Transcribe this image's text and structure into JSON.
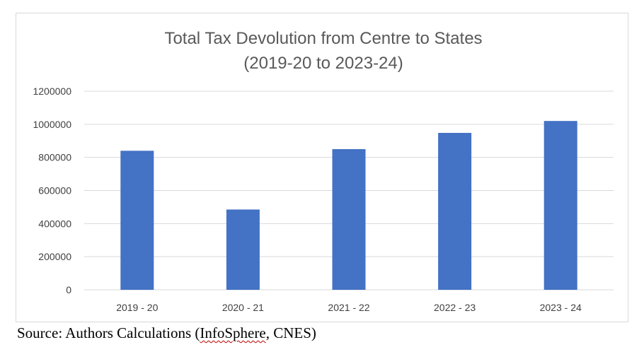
{
  "chart_data": {
    "type": "bar",
    "title": "Total Tax Devolution from Centre to States",
    "subtitle": "(2019-20 to 2023-24)",
    "categories": [
      "2019 - 20",
      "2020 - 21",
      "2021 - 22",
      "2022 - 23",
      "2023 - 24"
    ],
    "values": [
      840000,
      485000,
      850000,
      948000,
      1020000
    ],
    "ylim": [
      0,
      1200000
    ],
    "yticks": [
      "0",
      "200000",
      "400000",
      "600000",
      "800000",
      "1000000",
      "1200000"
    ],
    "xlabel": "",
    "ylabel": "",
    "grid": true,
    "bar_color": "#4472c4",
    "grid_color": "#d9d9d9"
  },
  "source": {
    "prefix": "Source: Authors Calculations (",
    "underlined": "InfoSphere",
    "suffix": ", CNES)"
  }
}
